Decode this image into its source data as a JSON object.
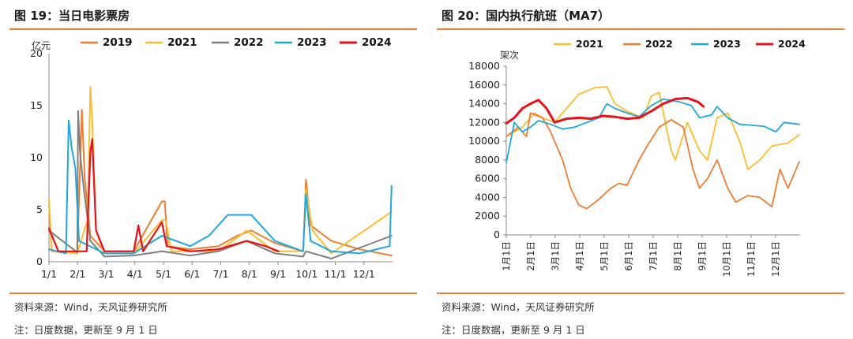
{
  "panels": [
    {
      "title": "图 19：当日电影票房",
      "source": "资料来源：Wind，天风证券研究所",
      "note": "注：日度数据，更新至 9 月 1 日"
    },
    {
      "title": "图 20：国内执行航班（MA7）",
      "source": "资料来源：Wind，天风证券研究所",
      "note": "注：日度数据，更新至 9 月 1 日"
    }
  ],
  "chart_data": [
    {
      "type": "line",
      "title": "当日电影票房",
      "unit": "亿元",
      "xticks": [
        "1/1",
        "2/1",
        "3/1",
        "4/1",
        "5/1",
        "6/1",
        "7/1",
        "8/1",
        "9/1",
        "10/1",
        "11/1",
        "12/1"
      ],
      "ylim": [
        0,
        20
      ],
      "yticks": [
        0,
        5,
        10,
        15,
        20
      ],
      "legend_position": "top",
      "colors": {
        "2019": "#ed7d31",
        "2021": "#fbbd2c",
        "2022": "#7f7f7f",
        "2023": "#1fa8e0",
        "2024": "#e8101a"
      },
      "series": [
        {
          "name": "2019",
          "points": [
            [
              0,
              5.5
            ],
            [
              3,
              1.0
            ],
            [
              30,
              0.8
            ],
            [
              35,
              14.6
            ],
            [
              38,
              8.0
            ],
            [
              44,
              2.5
            ],
            [
              59,
              1.0
            ],
            [
              90,
              1.0
            ],
            [
              120,
              5.8
            ],
            [
              123,
              5.8
            ],
            [
              126,
              1.5
            ],
            [
              150,
              1.2
            ],
            [
              180,
              1.5
            ],
            [
              200,
              2.5
            ],
            [
              215,
              3.0
            ],
            [
              240,
              1.8
            ],
            [
              270,
              1.0
            ],
            [
              273,
              7.9
            ],
            [
              278,
              3.5
            ],
            [
              300,
              2.0
            ],
            [
              330,
              1.2
            ],
            [
              364,
              0.6
            ]
          ]
        },
        {
          "name": "2021",
          "points": [
            [
              0,
              6.0
            ],
            [
              3,
              1.0
            ],
            [
              30,
              0.8
            ],
            [
              41,
              4.0
            ],
            [
              44,
              16.8
            ],
            [
              46,
              13.5
            ],
            [
              50,
              3.0
            ],
            [
              59,
              0.8
            ],
            [
              90,
              0.8
            ],
            [
              120,
              4.0
            ],
            [
              124,
              4.0
            ],
            [
              130,
              1.0
            ],
            [
              150,
              1.0
            ],
            [
              180,
              1.0
            ],
            [
              210,
              3.0
            ],
            [
              240,
              1.0
            ],
            [
              270,
              1.0
            ],
            [
              273,
              7.0
            ],
            [
              280,
              3.0
            ],
            [
              300,
              0.8
            ],
            [
              364,
              4.8
            ]
          ]
        },
        {
          "name": "2022",
          "points": [
            [
              0,
              3.0
            ],
            [
              30,
              0.9
            ],
            [
              31,
              14.5
            ],
            [
              33,
              10.5
            ],
            [
              37,
              7.0
            ],
            [
              44,
              2.0
            ],
            [
              59,
              0.5
            ],
            [
              90,
              0.6
            ],
            [
              120,
              1.0
            ],
            [
              150,
              0.6
            ],
            [
              180,
              1.0
            ],
            [
              210,
              2.0
            ],
            [
              240,
              0.8
            ],
            [
              270,
              0.5
            ],
            [
              273,
              1.0
            ],
            [
              300,
              0.3
            ],
            [
              364,
              2.5
            ]
          ]
        },
        {
          "name": "2023",
          "points": [
            [
              0,
              1.2
            ],
            [
              18,
              0.8
            ],
            [
              21,
              13.6
            ],
            [
              24,
              11.0
            ],
            [
              28,
              9.0
            ],
            [
              32,
              2.0
            ],
            [
              59,
              0.8
            ],
            [
              90,
              0.8
            ],
            [
              120,
              2.5
            ],
            [
              150,
              1.5
            ],
            [
              170,
              2.5
            ],
            [
              190,
              4.5
            ],
            [
              215,
              4.5
            ],
            [
              240,
              2.0
            ],
            [
              270,
              1.0
            ],
            [
              273,
              6.5
            ],
            [
              278,
              2.0
            ],
            [
              300,
              1.0
            ],
            [
              330,
              0.8
            ],
            [
              362,
              1.5
            ],
            [
              364,
              7.3
            ]
          ]
        },
        {
          "name": "2024",
          "points": [
            [
              0,
              3.2
            ],
            [
              10,
              1.0
            ],
            [
              40,
              1.0
            ],
            [
              44,
              10.5
            ],
            [
              46,
              11.8
            ],
            [
              50,
              3.0
            ],
            [
              59,
              1.0
            ],
            [
              90,
              1.0
            ],
            [
              95,
              3.5
            ],
            [
              100,
              1.0
            ],
            [
              120,
              3.8
            ],
            [
              125,
              1.5
            ],
            [
              150,
              1.0
            ],
            [
              180,
              1.2
            ],
            [
              210,
              2.0
            ],
            [
              230,
              1.5
            ],
            [
              244,
              1.0
            ]
          ]
        }
      ]
    },
    {
      "type": "line",
      "title": "国内执行航班（MA7）",
      "unit": "架次",
      "xticks": [
        "1月1日",
        "2月1日",
        "3月1日",
        "4月1日",
        "5月1日",
        "6月1日",
        "7月1日",
        "8月1日",
        "9月1日",
        "10月1日",
        "11月1日",
        "12月1日"
      ],
      "ylim": [
        0,
        18000
      ],
      "yticks": [
        0,
        2000,
        4000,
        6000,
        8000,
        10000,
        12000,
        14000,
        16000,
        18000
      ],
      "legend_position": "top",
      "colors": {
        "2021": "#fbbd2c",
        "2022": "#ed7d31",
        "2023": "#1fa8e0",
        "2024": "#e8101a"
      },
      "series": [
        {
          "name": "2021",
          "points": [
            [
              0,
              10500
            ],
            [
              20,
              11500
            ],
            [
              35,
              13000
            ],
            [
              45,
              12500
            ],
            [
              60,
              12000
            ],
            [
              90,
              15000
            ],
            [
              110,
              15700
            ],
            [
              125,
              15800
            ],
            [
              135,
              14000
            ],
            [
              150,
              13200
            ],
            [
              170,
              12500
            ],
            [
              180,
              14800
            ],
            [
              190,
              15200
            ],
            [
              200,
              11000
            ],
            [
              205,
              9000
            ],
            [
              210,
              8000
            ],
            [
              225,
              12000
            ],
            [
              240,
              9000
            ],
            [
              250,
              8000
            ],
            [
              262,
              12500
            ],
            [
              275,
              13000
            ],
            [
              290,
              10000
            ],
            [
              300,
              7000
            ],
            [
              315,
              8000
            ],
            [
              330,
              9500
            ],
            [
              350,
              9800
            ],
            [
              364,
              10700
            ]
          ]
        },
        {
          "name": "2022",
          "points": [
            [
              0,
              10500
            ],
            [
              15,
              11500
            ],
            [
              25,
              10500
            ],
            [
              30,
              13000
            ],
            [
              45,
              12500
            ],
            [
              55,
              11000
            ],
            [
              70,
              8000
            ],
            [
              80,
              5000
            ],
            [
              90,
              3200
            ],
            [
              100,
              2800
            ],
            [
              115,
              3800
            ],
            [
              130,
              5000
            ],
            [
              140,
              5500
            ],
            [
              150,
              5300
            ],
            [
              165,
              8000
            ],
            [
              175,
              9500
            ],
            [
              190,
              11500
            ],
            [
              205,
              12300
            ],
            [
              220,
              11500
            ],
            [
              232,
              7000
            ],
            [
              240,
              5000
            ],
            [
              250,
              6000
            ],
            [
              262,
              8000
            ],
            [
              275,
              5000
            ],
            [
              285,
              3500
            ],
            [
              300,
              4200
            ],
            [
              315,
              4000
            ],
            [
              330,
              3000
            ],
            [
              340,
              7000
            ],
            [
              350,
              5000
            ],
            [
              364,
              7800
            ]
          ]
        },
        {
          "name": "2023",
          "points": [
            [
              0,
              7700
            ],
            [
              10,
              12000
            ],
            [
              20,
              11000
            ],
            [
              30,
              11500
            ],
            [
              40,
              12200
            ],
            [
              55,
              11800
            ],
            [
              70,
              11300
            ],
            [
              85,
              11500
            ],
            [
              100,
              12000
            ],
            [
              115,
              12500
            ],
            [
              125,
              14000
            ],
            [
              135,
              13500
            ],
            [
              150,
              13000
            ],
            [
              165,
              12600
            ],
            [
              180,
              13800
            ],
            [
              195,
              14500
            ],
            [
              215,
              14200
            ],
            [
              230,
              13800
            ],
            [
              240,
              12500
            ],
            [
              255,
              12800
            ],
            [
              262,
              13700
            ],
            [
              275,
              12500
            ],
            [
              290,
              11800
            ],
            [
              305,
              11700
            ],
            [
              320,
              11600
            ],
            [
              335,
              11000
            ],
            [
              345,
              12000
            ],
            [
              364,
              11800
            ]
          ]
        },
        {
          "name": "2024",
          "points": [
            [
              0,
              11900
            ],
            [
              10,
              12500
            ],
            [
              20,
              13500
            ],
            [
              30,
              14000
            ],
            [
              40,
              14400
            ],
            [
              50,
              13500
            ],
            [
              60,
              12000
            ],
            [
              75,
              12400
            ],
            [
              90,
              12500
            ],
            [
              105,
              12400
            ],
            [
              120,
              12700
            ],
            [
              135,
              12600
            ],
            [
              150,
              12400
            ],
            [
              165,
              12500
            ],
            [
              180,
              13200
            ],
            [
              195,
              14000
            ],
            [
              210,
              14500
            ],
            [
              225,
              14600
            ],
            [
              238,
              14200
            ],
            [
              245,
              13700
            ]
          ]
        }
      ]
    }
  ]
}
